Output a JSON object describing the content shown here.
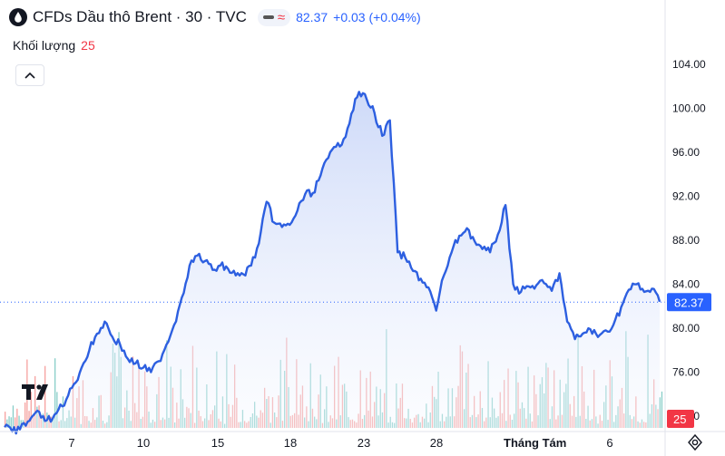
{
  "header": {
    "title": "CFDs Dầu thô Brent · 30 · TVC",
    "last_price": "82.37",
    "change": "+0.03 (+0.04%)",
    "volume_label": "Khối lượng",
    "volume_value": "25"
  },
  "colors": {
    "line": "#2d5fe0",
    "area_top": "#c5d3f7",
    "area_bottom": "#f5f8ff",
    "vol_up": "#26a69a",
    "vol_down": "#ef5350",
    "price_tag": "#2962ff",
    "vol_tag": "#f23645"
  },
  "chart_data": {
    "type": "line",
    "title": "CFDs Dầu thô Brent · 30 · TVC",
    "xlabel": "",
    "ylabel": "",
    "ylim": [
      68,
      106
    ],
    "y_ticks": [
      "104.00",
      "100.00",
      "96.00",
      "92.00",
      "88.00",
      "84.00",
      "80.00",
      "76.00",
      "72.00"
    ],
    "x_tick_labels": [
      "7",
      "10",
      "15",
      "18",
      "23",
      "28",
      "Tháng Tám",
      "6"
    ],
    "current_price": 82.37,
    "current_price_label": "82.37",
    "volume_label": "25",
    "series": [
      {
        "values": [
          71.0,
          70.6,
          70.8,
          71.5,
          72.3,
          72.0,
          71.5,
          72.6,
          73.5,
          74.9,
          76.4,
          78.0,
          79.5,
          80.6,
          79.2,
          78.5,
          77.2,
          76.8,
          76.4,
          76.0,
          77.0,
          78.5,
          80.3,
          82.8,
          85.7,
          86.6,
          86.1,
          85.3,
          85.7,
          85.4,
          84.8,
          84.9,
          85.7,
          87.7,
          91.5,
          89.6,
          89.2,
          89.4,
          90.7,
          92.2,
          92.3,
          93.9,
          95.5,
          96.5,
          97.2,
          99.5,
          101.5,
          100.8,
          99.6,
          97.5,
          98.9,
          86.9,
          86.4,
          85.2,
          84.5,
          83.7,
          81.6,
          84.8,
          86.9,
          88.4,
          89.1,
          87.9,
          87.2,
          86.9,
          88.5,
          91.2,
          84.0,
          83.3,
          83.8,
          83.9,
          84.1,
          83.4,
          85.0,
          80.6,
          79.0,
          79.5,
          79.9,
          79.2,
          79.8,
          80.3,
          81.9,
          83.5,
          84.0,
          83.3,
          83.6,
          82.4
        ]
      }
    ]
  }
}
